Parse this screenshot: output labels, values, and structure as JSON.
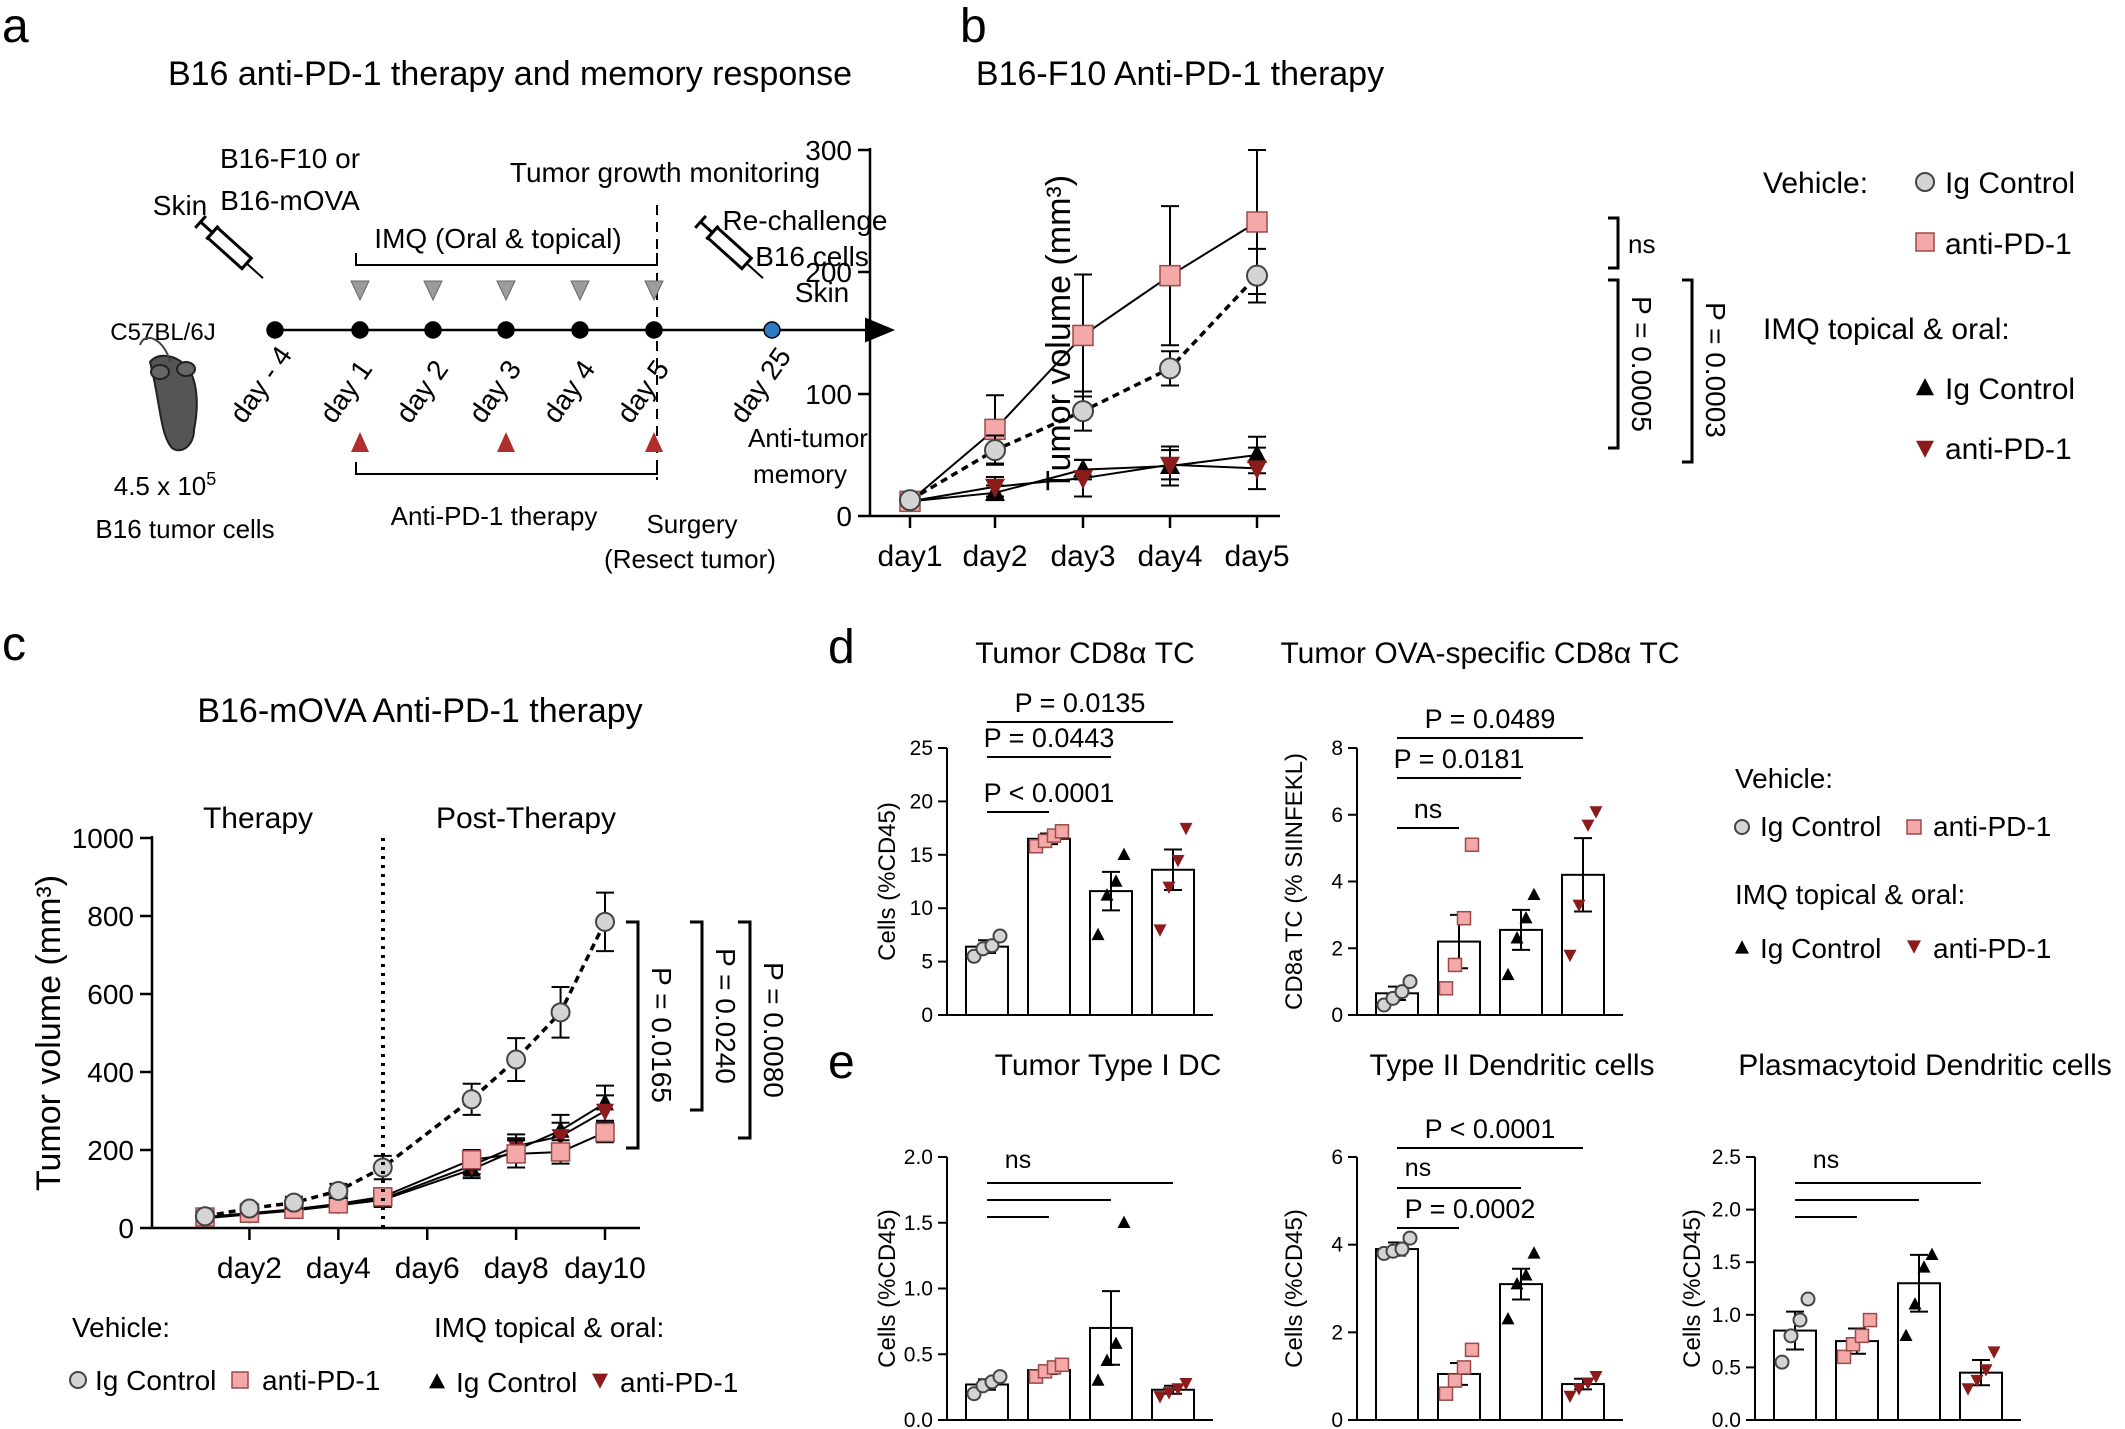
{
  "colors": {
    "ig": "#d4d4d4",
    "pd1": "#f4a9a8",
    "imq_ig": "#000000",
    "imq_pd1": "#8c1c1c",
    "arrow_up": "#b02e2e",
    "arrow_down": "#9c9c9c",
    "last_dot": "#2e7bc4"
  },
  "panel_a": {
    "letter": "a",
    "title": "B16 anti-PD-1 therapy and memory response",
    "skin": "Skin",
    "inoc_line1": "B16-F10 or",
    "inoc_line2": "B16-mOVA",
    "mouse": "C57BL/6J",
    "dose_line1": "4.5 x 10",
    "dose_sup": "5",
    "dose_line2": "B16 tumor cells",
    "monitor": "Tumor growth monitoring",
    "imq": "IMQ (Oral & topical)",
    "rechallenge_line1": "Re-challenge",
    "rechallenge_line2": "B16 cells",
    "rechallenge_line3": "Skin",
    "days": [
      "day - 4",
      "day 1",
      "day 2",
      "day 3",
      "day 4",
      "day 5",
      "day 25"
    ],
    "therapy": "Anti-PD-1 therapy",
    "surgery_line1": "Surgery",
    "surgery_line2": "(Resect tumor)",
    "memory_line1": "Anti-tumor",
    "memory_line2": "memory"
  },
  "chart_data": [
    {
      "id": "b",
      "type": "line",
      "letter": "b",
      "title": "B16-F10 Anti-PD-1 therapy",
      "ylabel": "Tumor volume (mm³)",
      "xlabel": "",
      "categories": [
        "day1",
        "day2",
        "day3",
        "day4",
        "day5"
      ],
      "ylim": [
        0,
        300
      ],
      "yticks": [
        0,
        100,
        200,
        300
      ],
      "series": [
        {
          "name": "Ig Control",
          "group": "Vehicle:",
          "marker": "circle",
          "dashed": true,
          "values": [
            13,
            54,
            86,
            121,
            197
          ],
          "err": [
            3,
            12,
            16,
            14,
            22
          ]
        },
        {
          "name": "anti-PD-1",
          "group": "Vehicle:",
          "marker": "square",
          "dashed": false,
          "values": [
            12,
            71,
            148,
            197,
            241
          ],
          "err": [
            3,
            28,
            50,
            57,
            59
          ]
        },
        {
          "name": "Ig Control",
          "group": "IMQ topical & oral:",
          "marker": "triangle-up",
          "dashed": false,
          "values": [
            12,
            19,
            38,
            41,
            50
          ],
          "err": [
            2,
            6,
            8,
            16,
            15
          ]
        },
        {
          "name": "anti-PD-1",
          "group": "IMQ topical & oral:",
          "marker": "triangle-down",
          "dashed": false,
          "values": [
            12,
            24,
            31,
            42,
            39
          ],
          "err": [
            2,
            8,
            15,
            12,
            17
          ]
        }
      ],
      "annotations": [
        "ns",
        "P = 0.0005",
        "P = 0.0003"
      ],
      "legend": {
        "vehicle": "Vehicle:",
        "imq": "IMQ topical & oral:",
        "ig": "Ig Control",
        "pd1": "anti-PD-1"
      }
    },
    {
      "id": "c",
      "type": "line",
      "letter": "c",
      "title": "B16-mOVA Anti-PD-1 therapy",
      "ylabel": "Tumor volume (mm³)",
      "xlabel": "",
      "phase_labels": [
        "Therapy",
        "Post-Therapy"
      ],
      "x": [
        1,
        2,
        3,
        4,
        5,
        7,
        8,
        9,
        10
      ],
      "xtick_labels": [
        "day2",
        "day4",
        "day6",
        "day8",
        "day10"
      ],
      "xtick_values": [
        2,
        4,
        6,
        8,
        10
      ],
      "ylim": [
        0,
        1000
      ],
      "yticks": [
        0,
        200,
        400,
        600,
        800,
        1000
      ],
      "series": [
        {
          "name": "Ig Control",
          "group": "Vehicle:",
          "marker": "circle",
          "dashed": true,
          "values": [
            30,
            50,
            65,
            95,
            155,
            330,
            432,
            553,
            785
          ],
          "err": [
            10,
            12,
            15,
            18,
            30,
            40,
            55,
            65,
            75
          ]
        },
        {
          "name": "anti-PD-1",
          "group": "Vehicle:",
          "marker": "square",
          "dashed": false,
          "values": [
            28,
            38,
            48,
            62,
            80,
            175,
            190,
            195,
            245
          ],
          "err": [
            8,
            10,
            12,
            15,
            20,
            25,
            35,
            30,
            25
          ]
        },
        {
          "name": "Ig Control",
          "group": "IMQ topical & oral:",
          "marker": "triangle-up",
          "dashed": false,
          "values": [
            25,
            35,
            45,
            58,
            72,
            150,
            200,
            250,
            320
          ],
          "err": [
            8,
            10,
            12,
            15,
            18,
            22,
            30,
            40,
            45
          ]
        },
        {
          "name": "anti-PD-1",
          "group": "IMQ topical & oral:",
          "marker": "triangle-down",
          "dashed": false,
          "values": [
            27,
            36,
            47,
            60,
            75,
            160,
            210,
            235,
            300
          ],
          "err": [
            8,
            10,
            12,
            15,
            18,
            22,
            30,
            35,
            40
          ]
        }
      ],
      "annotations": [
        "P = 0.0165",
        "P = 0.0240",
        "P = 0.0080"
      ],
      "legend": {
        "vehicle": "Vehicle:",
        "imq": "IMQ topical & oral:",
        "ig": "Ig Control",
        "pd1": "anti-PD-1"
      }
    },
    {
      "id": "d1",
      "type": "bar",
      "letter": "d",
      "title": "Tumor CD8α TC",
      "ylabel": "Cells (%CD45)",
      "ylim": [
        0,
        25
      ],
      "yticks": [
        0,
        5,
        10,
        15,
        20,
        25
      ],
      "ytick_labels": [
        "0",
        "5",
        "10",
        "15",
        "20",
        "25"
      ],
      "categories": [
        "Vehicle Ig Control",
        "Vehicle anti-PD-1",
        "IMQ Ig Control",
        "IMQ anti-PD-1"
      ],
      "values": [
        6.4,
        16.5,
        11.6,
        13.6
      ],
      "err": [
        0.6,
        0.5,
        1.8,
        1.9
      ],
      "points": [
        [
          5.5,
          6.2,
          6.5,
          7.4
        ],
        [
          15.8,
          16.3,
          16.8,
          17.2
        ],
        [
          7.5,
          11.2,
          12.5,
          15.0
        ],
        [
          8.0,
          12.0,
          14.5,
          17.5
        ]
      ],
      "annotations": [
        "P = 0.0135",
        "P = 0.0443",
        "P < 0.0001"
      ]
    },
    {
      "id": "d2",
      "type": "bar",
      "letter": "",
      "title": "Tumor OVA-specific CD8α TC",
      "ylabel": "CD8a TC (% SIINFEKL)",
      "ylim": [
        0,
        8
      ],
      "yticks": [
        0,
        2,
        4,
        6,
        8
      ],
      "ytick_labels": [
        "0",
        "2",
        "4",
        "6",
        "8"
      ],
      "categories": [
        "Vehicle Ig Control",
        "Vehicle anti-PD-1",
        "IMQ Ig Control",
        "IMQ anti-PD-1"
      ],
      "values": [
        0.65,
        2.2,
        2.55,
        4.2
      ],
      "err": [
        0.2,
        0.8,
        0.6,
        1.1
      ],
      "points": [
        [
          0.3,
          0.5,
          0.7,
          1.0
        ],
        [
          0.8,
          1.5,
          2.9,
          5.1
        ],
        [
          1.2,
          2.3,
          2.9,
          3.6
        ],
        [
          1.8,
          3.3,
          5.7,
          6.1
        ]
      ],
      "annotations": [
        "P = 0.0489",
        "P = 0.0181",
        "ns"
      ]
    },
    {
      "id": "e1",
      "type": "bar",
      "letter": "e",
      "title": "Tumor Type I DC",
      "ylabel": "Cells (%CD45)",
      "ylim": [
        0,
        2.0
      ],
      "yticks": [
        0,
        0.5,
        1.0,
        1.5,
        2.0
      ],
      "ytick_labels": [
        "0.0",
        "0.5",
        "1.0",
        "1.5",
        "2.0"
      ],
      "categories": [
        "Vehicle Ig Control",
        "Vehicle anti-PD-1",
        "IMQ Ig Control",
        "IMQ anti-PD-1"
      ],
      "values": [
        0.27,
        0.38,
        0.7,
        0.23
      ],
      "err": [
        0.04,
        0.03,
        0.28,
        0.03
      ],
      "points": [
        [
          0.2,
          0.26,
          0.29,
          0.33
        ],
        [
          0.33,
          0.37,
          0.4,
          0.42
        ],
        [
          0.3,
          0.45,
          0.58,
          1.5
        ],
        [
          0.18,
          0.21,
          0.24,
          0.28
        ]
      ],
      "annotations": [
        "ns"
      ]
    },
    {
      "id": "e2",
      "type": "bar",
      "letter": "",
      "title": "Type II Dendritic cells",
      "ylabel": "Cells (%CD45)",
      "ylim": [
        0,
        6
      ],
      "yticks": [
        0,
        2,
        4,
        6
      ],
      "ytick_labels": [
        "0",
        "2",
        "4",
        "6"
      ],
      "categories": [
        "Vehicle Ig Control",
        "Vehicle anti-PD-1",
        "IMQ Ig Control",
        "IMQ anti-PD-1"
      ],
      "values": [
        3.9,
        1.05,
        3.1,
        0.82
      ],
      "err": [
        0.15,
        0.25,
        0.35,
        0.12
      ],
      "points": [
        [
          3.8,
          3.85,
          3.9,
          4.15
        ],
        [
          0.6,
          0.9,
          1.2,
          1.6
        ],
        [
          2.3,
          3.1,
          3.3,
          3.8
        ],
        [
          0.55,
          0.72,
          0.85,
          1.0
        ]
      ],
      "annotations": [
        "P < 0.0001",
        "ns",
        "P = 0.0002"
      ]
    },
    {
      "id": "e3",
      "type": "bar",
      "letter": "",
      "title": "Plasmacytoid Dendritic cells",
      "ylabel": "Cells (%CD45)",
      "ylim": [
        0,
        2.5
      ],
      "yticks": [
        0,
        0.5,
        1.0,
        1.5,
        2.0,
        2.5
      ],
      "ytick_labels": [
        "0.0",
        "0.5",
        "1.0",
        "1.5",
        "2.0",
        "2.5"
      ],
      "categories": [
        "Vehicle Ig Control",
        "Vehicle anti-PD-1",
        "IMQ Ig Control",
        "IMQ anti-PD-1"
      ],
      "values": [
        0.85,
        0.75,
        1.3,
        0.45
      ],
      "err": [
        0.18,
        0.12,
        0.27,
        0.12
      ],
      "points": [
        [
          0.55,
          0.8,
          0.95,
          1.15
        ],
        [
          0.6,
          0.72,
          0.8,
          0.95
        ],
        [
          0.8,
          1.1,
          1.45,
          1.57
        ],
        [
          0.3,
          0.38,
          0.48,
          0.65
        ]
      ],
      "annotations": [
        "ns"
      ]
    }
  ],
  "legend_d": {
    "vehicle": "Vehicle:",
    "imq": "IMQ topical & oral:",
    "ig": "Ig Control",
    "pd1": "anti-PD-1"
  }
}
